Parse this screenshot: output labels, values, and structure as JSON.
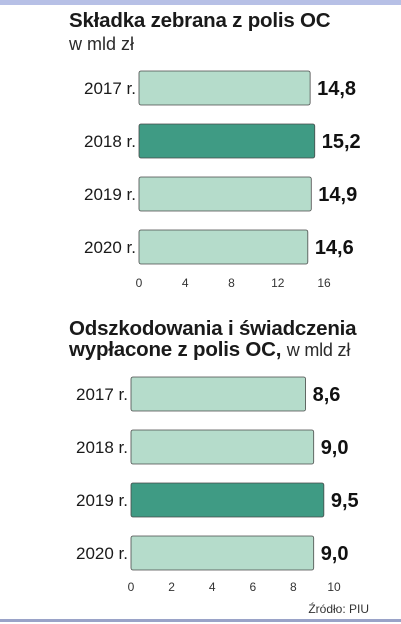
{
  "chart_data": [
    {
      "type": "bar",
      "orientation": "horizontal",
      "title": "Składka zebrana z polis OC",
      "subtitle": "w mld zł",
      "categories": [
        "2017 r.",
        "2018 r.",
        "2019 r.",
        "2020 r."
      ],
      "values": [
        14.8,
        15.2,
        14.9,
        14.6
      ],
      "value_labels": [
        "14,8",
        "15,2",
        "14,9",
        "14,6"
      ],
      "highlight_index": 1,
      "xlim": [
        0,
        16
      ],
      "ticks": [
        "0",
        "4",
        "8",
        "12",
        "16"
      ],
      "grid": false
    },
    {
      "type": "bar",
      "orientation": "horizontal",
      "title": "Odszkodowania i świadczenia",
      "title_line2": "wypłacone z polis OC,",
      "subtitle": "w mld zł",
      "categories": [
        "2017 r.",
        "2018 r.",
        "2019 r.",
        "2020 r."
      ],
      "values": [
        8.6,
        9.0,
        9.5,
        9.0
      ],
      "value_labels": [
        "8,6",
        "9,0",
        "9,5",
        "9,0"
      ],
      "highlight_index": 2,
      "xlim": [
        0,
        10
      ],
      "ticks": [
        "0",
        "2",
        "4",
        "6",
        "8",
        "10"
      ],
      "grid": false
    }
  ],
  "source": "Źródło: PIU",
  "colors": {
    "bar": "#b5dccb",
    "bar_highlight": "#3f9b84",
    "bar_stroke": "#4a4a4a",
    "top_bar": "#b7c0e6",
    "bottom_rule": "#9aa3c8"
  }
}
